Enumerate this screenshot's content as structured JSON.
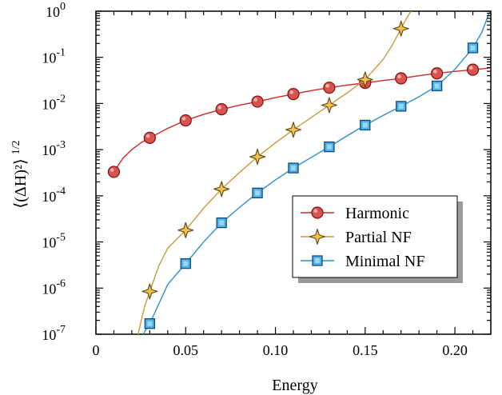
{
  "chart_data": {
    "type": "line",
    "xlabel": "Energy",
    "ylabel": "⟨(ΔH)²⟩",
    "ylabel_exponent": "1/2",
    "y_scale": "log",
    "xlim": [
      0,
      0.22
    ],
    "ylim": [
      1e-07,
      1
    ],
    "x_ticks": [
      {
        "value": 0,
        "label": "0"
      },
      {
        "value": 0.05,
        "label": "0.05"
      },
      {
        "value": 0.1,
        "label": "0.10"
      },
      {
        "value": 0.15,
        "label": "0.15"
      },
      {
        "value": 0.2,
        "label": "0.20"
      }
    ],
    "y_ticks": [
      {
        "exp": 0,
        "base": "10",
        "sup": "0"
      },
      {
        "exp": -1,
        "base": "10",
        "sup": "-1"
      },
      {
        "exp": -2,
        "base": "10",
        "sup": "-2"
      },
      {
        "exp": -3,
        "base": "10",
        "sup": "-3"
      },
      {
        "exp": -4,
        "base": "10",
        "sup": "-4"
      },
      {
        "exp": -5,
        "base": "10",
        "sup": "-5"
      },
      {
        "exp": -6,
        "base": "10",
        "sup": "-6"
      },
      {
        "exp": -7,
        "base": "10",
        "sup": "-7"
      }
    ],
    "legend_position": "right-middle",
    "series": [
      {
        "name": "Harmonic",
        "marker": "circle",
        "line_color": "#cc2a2a",
        "marker_fill": "#d9534f",
        "x": [
          0.01,
          0.03,
          0.05,
          0.07,
          0.09,
          0.11,
          0.13,
          0.15,
          0.17,
          0.19,
          0.21
        ],
        "y": [
          0.00033,
          0.0018,
          0.0043,
          0.0075,
          0.011,
          0.016,
          0.022,
          0.028,
          0.035,
          0.045,
          0.054
        ],
        "curve_x": [
          0.01,
          0.015,
          0.02,
          0.025,
          0.03,
          0.04,
          0.05,
          0.06,
          0.07,
          0.08,
          0.09,
          0.1,
          0.11,
          0.12,
          0.13,
          0.14,
          0.15,
          0.16,
          0.17,
          0.18,
          0.19,
          0.2,
          0.21,
          0.22
        ],
        "curve_y": [
          0.00033,
          0.00065,
          0.001,
          0.0014,
          0.0018,
          0.0029,
          0.0043,
          0.0058,
          0.0075,
          0.0092,
          0.011,
          0.0134,
          0.016,
          0.019,
          0.022,
          0.025,
          0.028,
          0.0315,
          0.035,
          0.04,
          0.045,
          0.0495,
          0.054,
          0.059
        ]
      },
      {
        "name": "Partial NF",
        "marker": "star",
        "line_color": "#c99a3a",
        "marker_fill": "#f2c14e",
        "x": [
          0.03,
          0.05,
          0.07,
          0.09,
          0.11,
          0.13,
          0.15,
          0.17
        ],
        "y": [
          8.5e-07,
          1.8e-05,
          0.00014,
          0.0007,
          0.0027,
          0.0092,
          0.033,
          0.42
        ],
        "curve_x": [
          0.0235,
          0.025,
          0.027,
          0.03,
          0.035,
          0.04,
          0.05,
          0.06,
          0.07,
          0.08,
          0.09,
          0.1,
          0.11,
          0.12,
          0.13,
          0.14,
          0.15,
          0.16,
          0.165,
          0.17,
          0.173,
          0.1755
        ],
        "curve_y": [
          1e-07,
          1.8e-07,
          3.8e-07,
          8.5e-07,
          3e-06,
          7.3e-06,
          1.8e-05,
          5.4e-05,
          0.00014,
          0.00032,
          0.0007,
          0.0014,
          0.0027,
          0.005,
          0.0092,
          0.017,
          0.033,
          0.09,
          0.18,
          0.42,
          0.7,
          1.0
        ]
      },
      {
        "name": "Minimal NF",
        "marker": "square",
        "line_color": "#2a8fc9",
        "marker_fill": "#4fb3e8",
        "x": [
          0.03,
          0.05,
          0.07,
          0.09,
          0.11,
          0.13,
          0.15,
          0.17,
          0.19,
          0.21
        ],
        "y": [
          1.7e-07,
          3.4e-06,
          2.6e-05,
          0.000115,
          0.0004,
          0.00115,
          0.0034,
          0.0087,
          0.024,
          0.16
        ],
        "curve_x": [
          0.0265,
          0.028,
          0.03,
          0.035,
          0.04,
          0.05,
          0.06,
          0.07,
          0.08,
          0.09,
          0.1,
          0.11,
          0.12,
          0.13,
          0.14,
          0.15,
          0.16,
          0.17,
          0.18,
          0.19,
          0.2,
          0.21,
          0.215,
          0.2195
        ],
        "curve_y": [
          1e-07,
          1.3e-07,
          1.7e-07,
          4.5e-07,
          1.2e-06,
          3.4e-06,
          1e-05,
          2.6e-05,
          5.6e-05,
          0.000115,
          0.00022,
          0.0004,
          0.00068,
          0.00115,
          0.002,
          0.0034,
          0.0055,
          0.0087,
          0.014,
          0.024,
          0.055,
          0.16,
          0.35,
          1.0
        ]
      }
    ]
  }
}
